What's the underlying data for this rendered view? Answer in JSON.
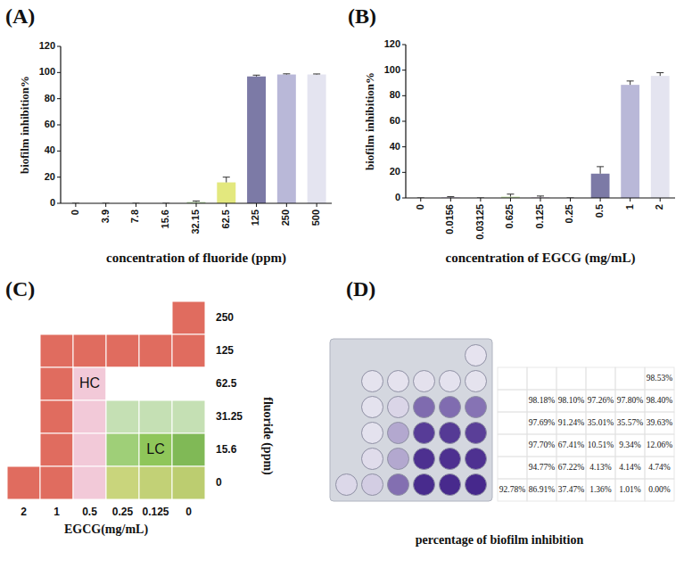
{
  "chart_data": [
    {
      "type": "bar",
      "title": "(A)",
      "x_label": "concentration of fluoride (ppm)",
      "y_label": "biofilm inhibition%",
      "categories": [
        "0",
        "3.9",
        "7.8",
        "15.6",
        "32.15",
        "62.5",
        "125",
        "250",
        "500"
      ],
      "values": [
        0,
        0,
        0,
        0,
        1,
        16,
        97,
        98.5,
        98.5
      ],
      "errors": [
        0,
        0,
        0,
        0,
        0.8,
        4,
        1,
        0.5,
        0.4
      ],
      "colors": [
        "#d9d9e8",
        "#d9d9e8",
        "#cfe3c4",
        "#c9d9ea",
        "#b7d7a8",
        "#e3e87e",
        "#7c7aa6",
        "#b9b8d8",
        "#e4e4f0"
      ],
      "ylim": [
        0,
        120
      ],
      "yticks": [
        0,
        20,
        40,
        60,
        80,
        100,
        120
      ]
    },
    {
      "type": "bar",
      "title": "(B)",
      "x_label": "concentration of  EGCG (mg/mL)",
      "y_label": "biofilm inhibition%",
      "categories": [
        "0",
        "0.0156",
        "0.03125",
        "0.625",
        "0.125",
        "0.25",
        "0.5",
        "1",
        "2"
      ],
      "values": [
        0,
        0.5,
        0,
        1,
        0.5,
        0,
        19,
        88.5,
        95.5
      ],
      "errors": [
        0,
        0.5,
        0,
        2,
        1,
        0,
        5.5,
        3,
        2.5
      ],
      "colors": [
        "#d9d9e8",
        "#d4c7e3",
        "#cfe3c4",
        "#c6e2a8",
        "#d8c4de",
        "#c9d9ea",
        "#7c7aa6",
        "#b9b8d8",
        "#e4e4f0"
      ],
      "ylim": [
        0,
        120
      ],
      "yticks": [
        0,
        20,
        40,
        60,
        80,
        100,
        120
      ]
    },
    {
      "type": "heatmap",
      "title": "(C)",
      "x_label": "EGCG(mg/mL)",
      "y_label": "fluoride (ppm)",
      "x_categories": [
        2,
        1,
        0.5,
        0.25,
        0.125,
        0
      ],
      "y_categories": [
        250,
        125,
        62.5,
        31.25,
        15.6,
        0
      ],
      "colors": [
        [
          null,
          null,
          null,
          null,
          null,
          "#e06c5f"
        ],
        [
          null,
          "#e06c5f",
          "#e06c5f",
          "#e06c5f",
          "#e06c5f",
          "#e06c5f"
        ],
        [
          null,
          "#e06c5f",
          "#f2c9d8",
          "#ffffff",
          "#ffffff",
          "#ffffff"
        ],
        [
          null,
          "#e06c5f",
          "#f2c9d8",
          "#c5e0b4",
          "#c5e0b4",
          "#c5e0b4"
        ],
        [
          null,
          "#e06c5f",
          "#f2c9d8",
          "#9fcf78",
          "#8fc65a",
          "#80b956"
        ],
        [
          "#e06c5f",
          "#e06c5f",
          "#f2c9d8",
          "#c9d57c",
          "#c2d176",
          "#bccd70"
        ]
      ],
      "annotations": [
        {
          "text": "HC",
          "row": 2,
          "col": 2
        },
        {
          "text": "LC",
          "row": 4,
          "col": 4
        }
      ]
    },
    {
      "type": "table",
      "title": "(D)",
      "caption": "percentage of biofilm inhibition",
      "rows": [
        [
          null,
          null,
          null,
          null,
          null,
          "98.53%"
        ],
        [
          null,
          "98.18%",
          "98.10%",
          "97.26%",
          "97.80%",
          "98.40%"
        ],
        [
          null,
          "97.69%",
          "91.24%",
          "35.01%",
          "35.57%",
          "39.63%"
        ],
        [
          null,
          "97.70%",
          "67.41%",
          "10.51%",
          "9.34%",
          "12.06%"
        ],
        [
          null,
          "94.77%",
          "67.22%",
          "4.13%",
          "4.14%",
          "4.74%"
        ],
        [
          "92.78%",
          "86.91%",
          "37.47%",
          "1.36%",
          "1.01%",
          "0.00%"
        ]
      ]
    }
  ]
}
